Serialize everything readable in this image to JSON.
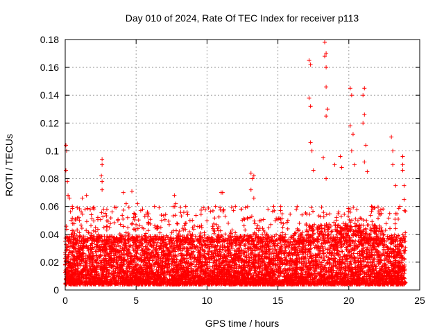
{
  "chart_data": {
    "type": "scatter",
    "title": "Day 010 of 2024, Rate Of TEC Index for receiver p113",
    "xlabel": "GPS time / hours",
    "ylabel": "ROTI / TECUs",
    "xlim": [
      0,
      25
    ],
    "ylim": [
      0,
      0.18
    ],
    "x_ticks": [
      "0",
      "5",
      "10",
      "15",
      "20",
      "25"
    ],
    "y_ticks": [
      "0",
      "0.02",
      "0.04",
      "0.06",
      "0.08",
      "0.1",
      "0.12",
      "0.14",
      "0.16",
      "0.18"
    ],
    "grid": true,
    "marker": "+",
    "color": "#ff0000",
    "series": [
      {
        "name": "ROTI",
        "density_note": "Dense band of points between 0.005 and ~0.04 TECU across 0–24 h; representative points listed",
        "points": [
          [
            0.05,
            0.104
          ],
          [
            0.1,
            0.1
          ],
          [
            0.05,
            0.086
          ],
          [
            0.15,
            0.078
          ],
          [
            0.2,
            0.068
          ],
          [
            0.3,
            0.066
          ],
          [
            0.5,
            0.06
          ],
          [
            1.2,
            0.066
          ],
          [
            1.5,
            0.068
          ],
          [
            1.4,
            0.058
          ],
          [
            1.0,
            0.05
          ],
          [
            2.6,
            0.094
          ],
          [
            2.6,
            0.09
          ],
          [
            2.55,
            0.082
          ],
          [
            2.6,
            0.078
          ],
          [
            2.6,
            0.072
          ],
          [
            2.7,
            0.058
          ],
          [
            4.1,
            0.07
          ],
          [
            4.3,
            0.062
          ],
          [
            4.7,
            0.071
          ],
          [
            4.4,
            0.052
          ],
          [
            5.1,
            0.062
          ],
          [
            5.8,
            0.056
          ],
          [
            6.3,
            0.06
          ],
          [
            6.8,
            0.05
          ],
          [
            7.7,
            0.068
          ],
          [
            7.8,
            0.062
          ],
          [
            8.5,
            0.06
          ],
          [
            8.8,
            0.05
          ],
          [
            9.1,
            0.046
          ],
          [
            10.6,
            0.06
          ],
          [
            11.0,
            0.07
          ],
          [
            11.1,
            0.07
          ],
          [
            11.5,
            0.048
          ],
          [
            12.0,
            0.06
          ],
          [
            12.4,
            0.058
          ],
          [
            13.1,
            0.084
          ],
          [
            13.2,
            0.08
          ],
          [
            13.3,
            0.082
          ],
          [
            13.1,
            0.072
          ],
          [
            13.3,
            0.066
          ],
          [
            13.8,
            0.05
          ],
          [
            14.3,
            0.058
          ],
          [
            14.7,
            0.06
          ],
          [
            15.2,
            0.06
          ],
          [
            15.7,
            0.05
          ],
          [
            16.3,
            0.058
          ],
          [
            16.7,
            0.054
          ],
          [
            17.2,
            0.165
          ],
          [
            17.3,
            0.162
          ],
          [
            17.2,
            0.138
          ],
          [
            17.3,
            0.132
          ],
          [
            17.3,
            0.106
          ],
          [
            17.4,
            0.1
          ],
          [
            17.5,
            0.086
          ],
          [
            18.3,
            0.178
          ],
          [
            18.4,
            0.17
          ],
          [
            18.3,
            0.168
          ],
          [
            18.4,
            0.16
          ],
          [
            18.4,
            0.146
          ],
          [
            18.5,
            0.13
          ],
          [
            18.4,
            0.125
          ],
          [
            18.2,
            0.095
          ],
          [
            18.4,
            0.08
          ],
          [
            19.0,
            0.09
          ],
          [
            19.4,
            0.096
          ],
          [
            19.5,
            0.088
          ],
          [
            20.1,
            0.145
          ],
          [
            20.2,
            0.14
          ],
          [
            20.1,
            0.118
          ],
          [
            20.3,
            0.112
          ],
          [
            20.2,
            0.1
          ],
          [
            20.4,
            0.09
          ],
          [
            21.0,
            0.14
          ],
          [
            21.1,
            0.145
          ],
          [
            21.1,
            0.126
          ],
          [
            21.0,
            0.12
          ],
          [
            21.2,
            0.104
          ],
          [
            21.1,
            0.092
          ],
          [
            21.3,
            0.085
          ],
          [
            21.6,
            0.06
          ],
          [
            22.3,
            0.055
          ],
          [
            23.0,
            0.11
          ],
          [
            23.1,
            0.1
          ],
          [
            23.1,
            0.09
          ],
          [
            23.3,
            0.075
          ],
          [
            23.6,
            0.06
          ],
          [
            23.8,
            0.096
          ],
          [
            23.8,
            0.09
          ],
          [
            23.8,
            0.086
          ],
          [
            23.9,
            0.075
          ],
          [
            23.9,
            0.065
          ]
        ]
      }
    ]
  }
}
